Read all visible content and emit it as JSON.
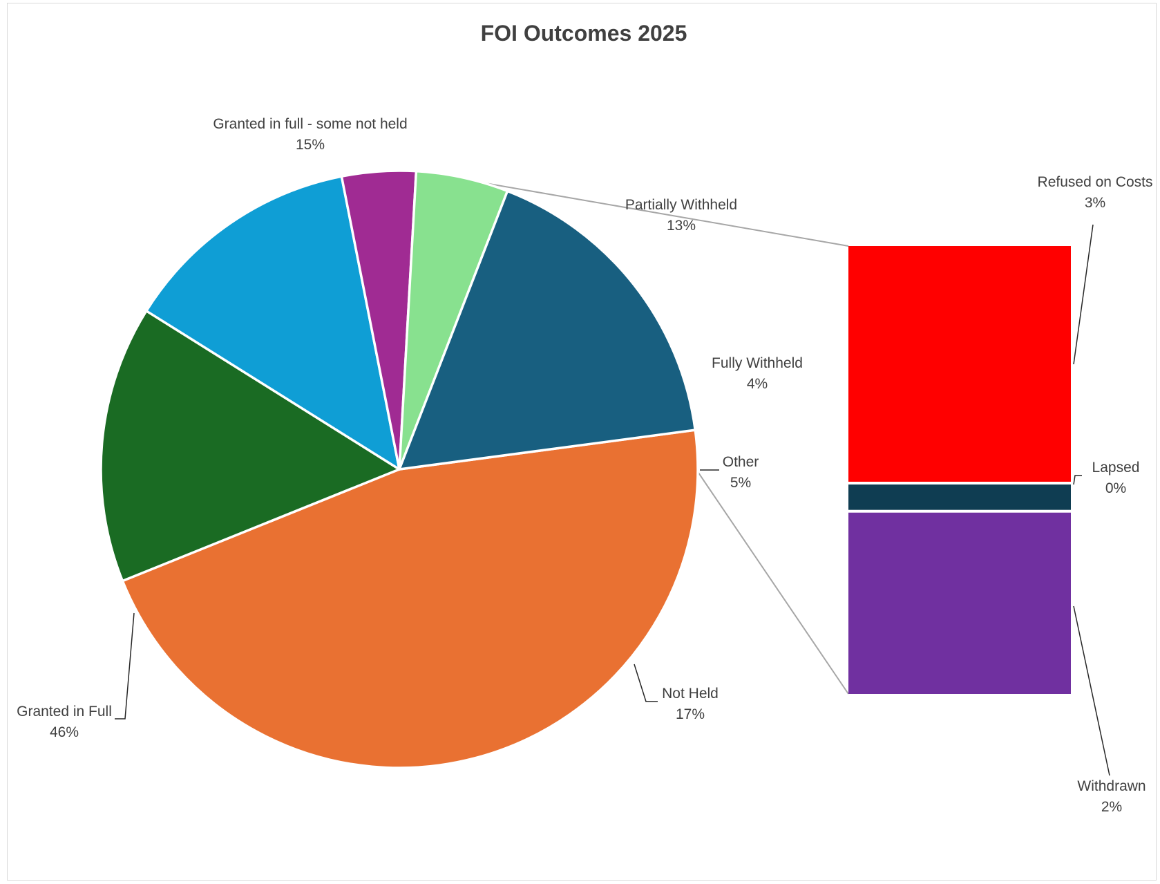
{
  "chart_data": {
    "type": "pie",
    "subtype": "bar-of-pie",
    "title": "FOI Outcomes 2025",
    "slices": [
      {
        "name": "Granted in Full",
        "label_pct": "46%",
        "value": 46,
        "color": "#E97132"
      },
      {
        "name": "Granted in full - some not held",
        "label_pct": "15%",
        "value": 15,
        "color": "#1A6B23"
      },
      {
        "name": "Partially Withheld",
        "label_pct": "13%",
        "value": 13,
        "color": "#0F9ED5"
      },
      {
        "name": "Fully Withheld",
        "label_pct": "4%",
        "value": 4,
        "color": "#A02B93"
      },
      {
        "name": "Other",
        "label_pct": "5%",
        "value": 5,
        "color": "#88E18F"
      },
      {
        "name": "Not Held",
        "label_pct": "17%",
        "value": 17,
        "color": "#185F80"
      }
    ],
    "secondary_bar": [
      {
        "name": "Refused on Costs",
        "label_pct": "3%",
        "value": 2.6,
        "color": "#FF0000"
      },
      {
        "name": "Lapsed",
        "label_pct": "0%",
        "value": 0.28,
        "color": "#0F3D52"
      },
      {
        "name": "Withdrawn",
        "label_pct": "2%",
        "value": 2.0,
        "color": "#7030A0"
      }
    ],
    "legend": "none",
    "grid": false
  }
}
